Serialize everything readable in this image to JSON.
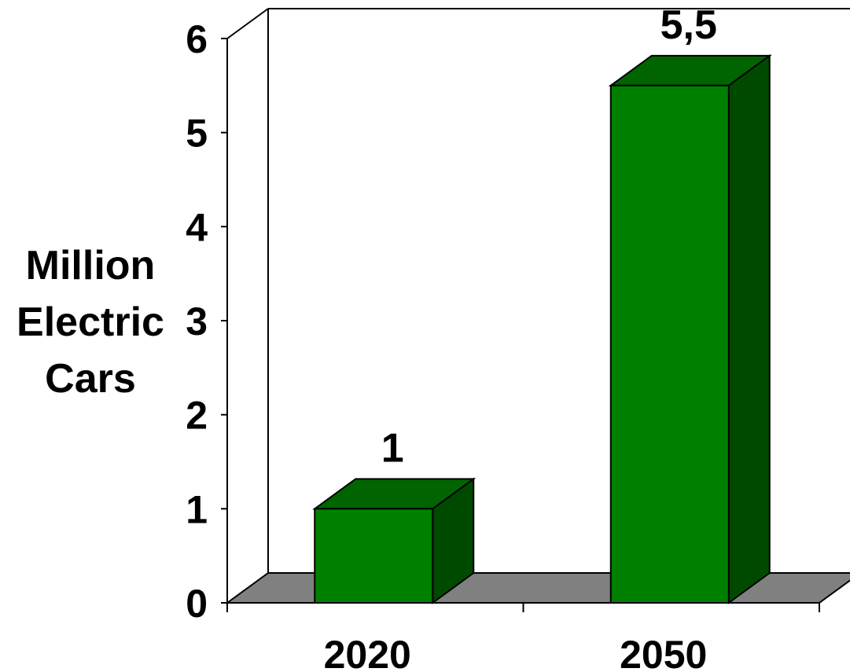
{
  "chart_data": {
    "type": "bar",
    "style": "3d",
    "categories": [
      "2020",
      "2050"
    ],
    "values": [
      1,
      5.5
    ],
    "data_labels": [
      "1",
      "5,5"
    ],
    "title": "",
    "xlabel": "",
    "ylabel_lines": [
      "Million",
      "Electric",
      "Cars"
    ],
    "yticks": [
      "0",
      "1",
      "2",
      "3",
      "4",
      "5",
      "6"
    ],
    "ylim": [
      0,
      6
    ],
    "grid": false,
    "legend": "none",
    "colors": {
      "bar_front": "#008000",
      "bar_top": "#006400",
      "bar_side": "#004A00",
      "floor": "#808080",
      "wall": "#ffffff",
      "outline": "#000000"
    }
  }
}
